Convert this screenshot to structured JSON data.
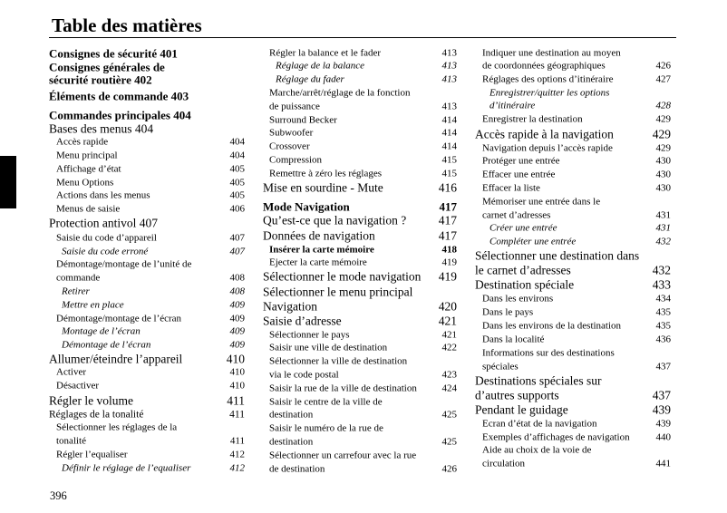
{
  "title": "Table des matières",
  "page_number": "396",
  "columns": [
    {
      "entries": [
        {
          "t": [
            "Consignes de sécurité  401"
          ],
          "s": "h1"
        },
        {
          "t": [
            "Consignes générales de",
            "sécurité routière  402"
          ],
          "s": "h1"
        },
        {
          "t": [
            "Éléments de commande  403"
          ],
          "s": "h1"
        },
        {
          "t": [
            "Commandes principales  404"
          ],
          "s": "h1"
        },
        {
          "t": [
            "Bases des menus  404"
          ],
          "s": "h2"
        },
        {
          "t": [
            "Accès rapide"
          ],
          "p": "404",
          "s": "n"
        },
        {
          "t": [
            "Menu principal"
          ],
          "p": "404",
          "s": "n"
        },
        {
          "t": [
            "Affichage d’état"
          ],
          "p": "405",
          "s": "n"
        },
        {
          "t": [
            "Menu Options"
          ],
          "p": "405",
          "s": "n"
        },
        {
          "t": [
            "Actions dans les menus"
          ],
          "p": "405",
          "s": "n"
        },
        {
          "t": [
            "Menus de saisie"
          ],
          "p": "406",
          "s": "n"
        },
        {
          "t": [
            "Protection antivol  407"
          ],
          "s": "h2"
        },
        {
          "t": [
            "Saisie du code d’appareil"
          ],
          "p": "407",
          "s": "n"
        },
        {
          "t": [
            "Saisie du code erroné"
          ],
          "p": "407",
          "s": "i"
        },
        {
          "t": [
            "Démontage/montage de l’unité de",
            "commande"
          ],
          "p": "408",
          "s": "n"
        },
        {
          "t": [
            "Retirer"
          ],
          "p": "408",
          "s": "i"
        },
        {
          "t": [
            "Mettre en place"
          ],
          "p": "409",
          "s": "i"
        },
        {
          "t": [
            "Démontage/montage de l’écran"
          ],
          "p": "409",
          "s": "n"
        },
        {
          "t": [
            "Montage de l’écran"
          ],
          "p": "409",
          "s": "i"
        },
        {
          "t": [
            "Démontage de l’écran"
          ],
          "p": "409",
          "s": "i"
        },
        {
          "t": [
            "Allumer/éteindre l’appareil"
          ],
          "p": "410",
          "s": "h2"
        },
        {
          "t": [
            "Activer"
          ],
          "p": "410",
          "s": "n"
        },
        {
          "t": [
            "Désactiver"
          ],
          "p": "410",
          "s": "n"
        },
        {
          "t": [
            "Régler le volume"
          ],
          "p": "411",
          "s": "h2"
        },
        {
          "t": [
            "Réglages de la tonalité"
          ],
          "p": "411",
          "s": "n0"
        },
        {
          "t": [
            "Sélectionner les réglages de la",
            "tonalité"
          ],
          "p": "411",
          "s": "n"
        },
        {
          "t": [
            "Régler l’equaliser"
          ],
          "p": "412",
          "s": "n"
        },
        {
          "t": [
            "Définir le réglage de l’equaliser"
          ],
          "p": "412",
          "s": "i"
        }
      ]
    },
    {
      "entries": [
        {
          "t": [
            "Régler la balance et le fader"
          ],
          "p": "413",
          "s": "n"
        },
        {
          "t": [
            "Réglage de la balance"
          ],
          "p": "413",
          "s": "i"
        },
        {
          "t": [
            "Réglage du fader"
          ],
          "p": "413",
          "s": "i"
        },
        {
          "t": [
            "Marche/arrêt/réglage de la fonction",
            "de puissance"
          ],
          "p": "413",
          "s": "n"
        },
        {
          "t": [
            "Surround Becker"
          ],
          "p": "414",
          "s": "n"
        },
        {
          "t": [
            "Subwoofer"
          ],
          "p": "414",
          "s": "n"
        },
        {
          "t": [
            "Crossover"
          ],
          "p": "414",
          "s": "n"
        },
        {
          "t": [
            "Compression"
          ],
          "p": "415",
          "s": "n"
        },
        {
          "t": [
            "Remettre à zéro les réglages"
          ],
          "p": "415",
          "s": "n"
        },
        {
          "t": [
            "Mise en sourdine - Mute"
          ],
          "p": "416",
          "s": "h2"
        },
        {
          "t": [
            "Mode Navigation"
          ],
          "p": "417",
          "s": "h1"
        },
        {
          "t": [
            "Qu’est-ce que la navigation ?"
          ],
          "p": "417",
          "s": "h2"
        },
        {
          "t": [
            "Données de navigation"
          ],
          "p": "417",
          "s": "h2"
        },
        {
          "t": [
            "Insérer la carte mémoire"
          ],
          "p": "418",
          "s": "b"
        },
        {
          "t": [
            "Ejecter la carte mémoire"
          ],
          "p": "419",
          "s": "n"
        },
        {
          "t": [
            "Sélectionner le mode navigation"
          ],
          "p": "419",
          "s": "h2"
        },
        {
          "t": [
            "Sélectionner le menu principal",
            "Navigation"
          ],
          "p": "420",
          "s": "h2"
        },
        {
          "t": [
            "Saisie d’adresse"
          ],
          "p": "421",
          "s": "h2"
        },
        {
          "t": [
            "Sélectionner le pays"
          ],
          "p": "421",
          "s": "n"
        },
        {
          "t": [
            "Saisir une ville de destination"
          ],
          "p": "422",
          "s": "n"
        },
        {
          "t": [
            "Sélectionner la ville de destination",
            "via le code postal"
          ],
          "p": "423",
          "s": "n"
        },
        {
          "t": [
            "Saisir la rue de la ville de destination"
          ],
          "p": "424",
          "s": "n"
        },
        {
          "t": [
            "Saisir le centre de la ville de",
            "destination"
          ],
          "p": "425",
          "s": "n"
        },
        {
          "t": [
            "Saisir le numéro de la rue de",
            "destination"
          ],
          "p": "425",
          "s": "n"
        },
        {
          "t": [
            "Sélectionner un carrefour avec la rue",
            "de destination"
          ],
          "p": "426",
          "s": "n"
        }
      ]
    },
    {
      "entries": [
        {
          "t": [
            "Indiquer une destination au moyen",
            "de coordonnées géographiques"
          ],
          "p": "426",
          "s": "n"
        },
        {
          "t": [
            "Réglages des options d’itinéraire"
          ],
          "p": "427",
          "s": "n"
        },
        {
          "t": [
            "Enregistrer/quitter les options",
            "d’itinéraire"
          ],
          "p": "428",
          "s": "i"
        },
        {
          "t": [
            "Enregistrer la destination"
          ],
          "p": "429",
          "s": "n"
        },
        {
          "t": [
            "Accès rapide à la navigation"
          ],
          "p": "429",
          "s": "h2"
        },
        {
          "t": [
            "Navigation depuis l’accès rapide"
          ],
          "p": "429",
          "s": "n"
        },
        {
          "t": [
            "Protéger une entrée"
          ],
          "p": "430",
          "s": "n"
        },
        {
          "t": [
            "Effacer une entrée"
          ],
          "p": "430",
          "s": "n"
        },
        {
          "t": [
            "Effacer la liste"
          ],
          "p": "430",
          "s": "n"
        },
        {
          "t": [
            "Mémoriser une entrée dans le",
            "carnet d’adresses"
          ],
          "p": "431",
          "s": "n"
        },
        {
          "t": [
            "Créer une entrée"
          ],
          "p": "431",
          "s": "i"
        },
        {
          "t": [
            "Compléter une entrée"
          ],
          "p": "432",
          "s": "i"
        },
        {
          "t": [
            "Sélectionner une destination dans",
            "le carnet d’adresses"
          ],
          "p": "432",
          "s": "h2"
        },
        {
          "t": [
            "Destination spéciale"
          ],
          "p": "433",
          "s": "h2"
        },
        {
          "t": [
            "Dans les environs"
          ],
          "p": "434",
          "s": "n"
        },
        {
          "t": [
            "Dans le pays"
          ],
          "p": "435",
          "s": "n"
        },
        {
          "t": [
            "Dans les environs de la destination"
          ],
          "p": "435",
          "s": "n"
        },
        {
          "t": [
            "Dans la localité"
          ],
          "p": "436",
          "s": "n"
        },
        {
          "t": [
            "Informations sur des destinations",
            "spéciales"
          ],
          "p": "437",
          "s": "n"
        },
        {
          "t": [
            "Destinations spéciales sur",
            "d’autres supports"
          ],
          "p": "437",
          "s": "h2"
        },
        {
          "t": [
            "Pendant le guidage"
          ],
          "p": "439",
          "s": "h2"
        },
        {
          "t": [
            "Ecran d’état de la navigation"
          ],
          "p": "439",
          "s": "n"
        },
        {
          "t": [
            "Exemples d’affichages de navigation"
          ],
          "p": "440",
          "s": "n"
        },
        {
          "t": [
            "Aide au choix de la voie de",
            "circulation"
          ],
          "p": "441",
          "s": "n"
        }
      ]
    }
  ]
}
